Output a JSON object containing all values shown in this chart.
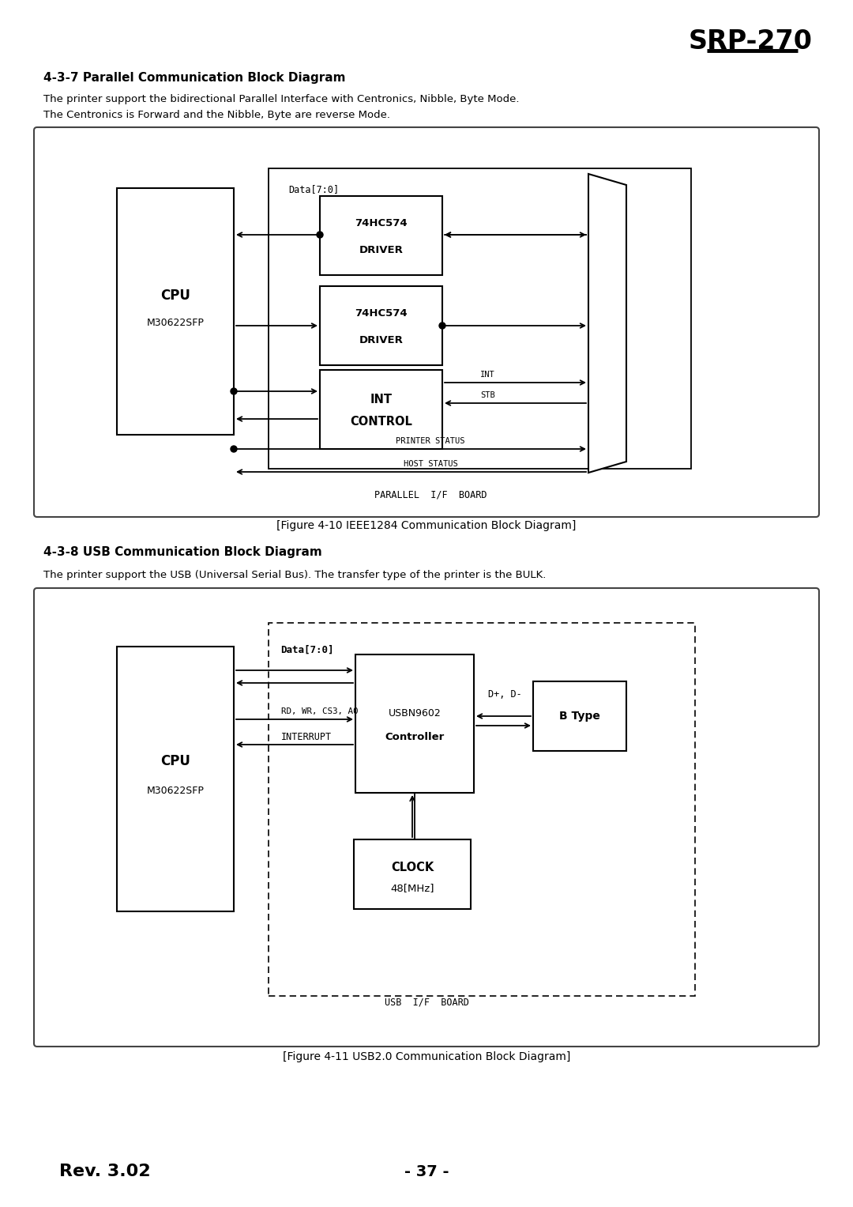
{
  "title": "SRP-270",
  "section1_heading": "4-3-7 Parallel Communication Block Diagram",
  "section1_text1": "The printer support the bidirectional Parallel Interface with Centronics, Nibble, Byte Mode.",
  "section1_text2": "The Centronics is Forward and the Nibble, Byte are reverse Mode.",
  "fig1_caption": "[Figure 4-10 IEEE1284 Communication Block Diagram]",
  "section2_heading": "4-3-8 USB Communication Block Diagram",
  "section2_text": "The printer support the USB (Universal Serial Bus). The transfer type of the printer is the BULK.",
  "fig2_caption": "[Figure 4-11 USB2.0 Communication Block Diagram]",
  "footer_left": "Rev. 3.02",
  "footer_center": "- 37 -"
}
